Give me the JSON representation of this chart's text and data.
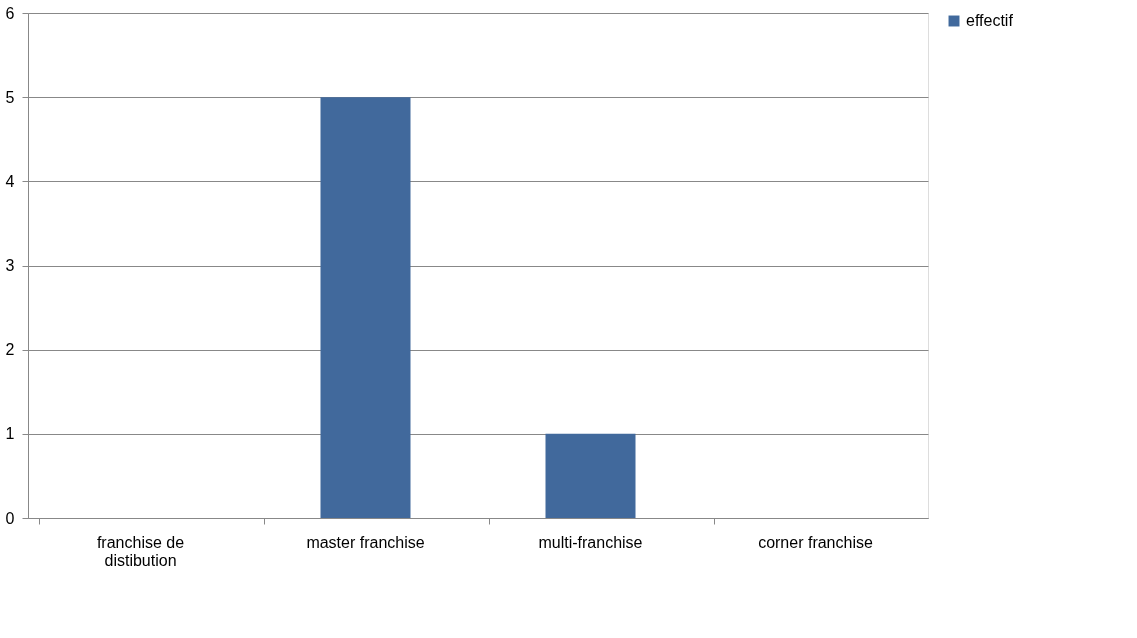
{
  "chart_data": {
    "type": "bar",
    "categories": [
      "franchise de distibution",
      "master franchise",
      "multi-franchise",
      "corner franchise"
    ],
    "series": [
      {
        "name": "effectif",
        "color": "#41699c",
        "values": [
          0,
          5,
          1,
          0
        ]
      }
    ],
    "ylim": [
      0,
      6
    ],
    "yticks": [
      0,
      1,
      2,
      3,
      4,
      5,
      6
    ],
    "grid": "y",
    "legend": "right"
  }
}
